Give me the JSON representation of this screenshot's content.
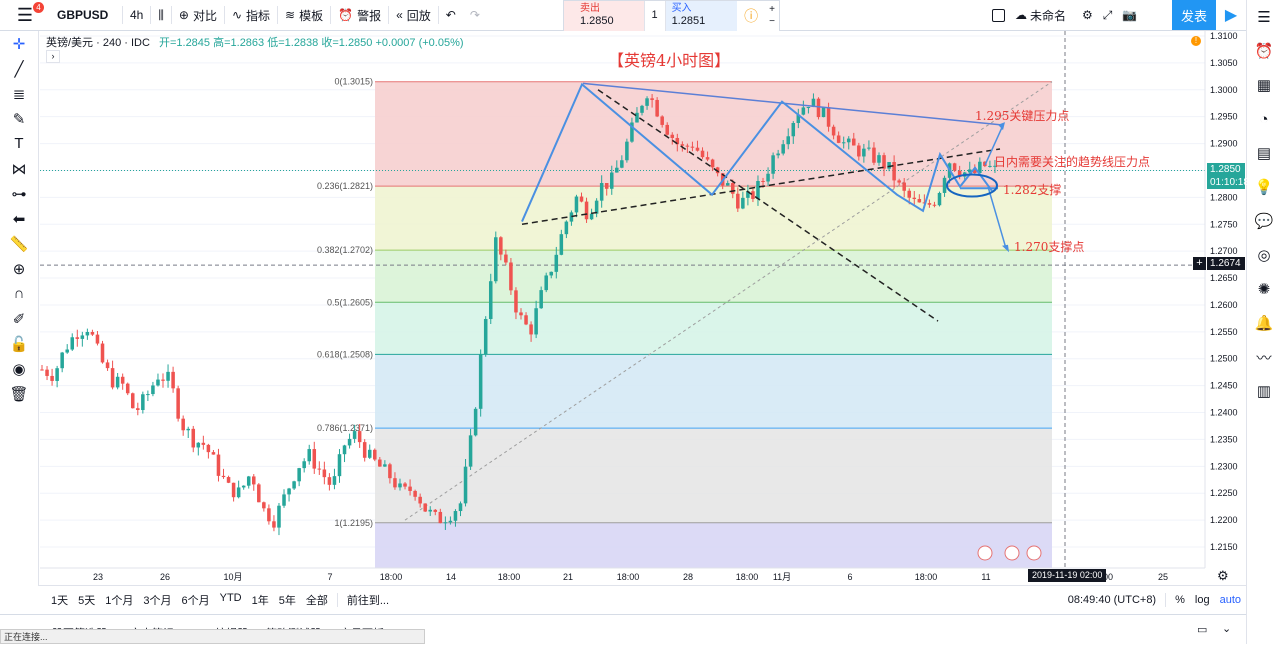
{
  "topbar": {
    "notifications": "4",
    "symbol": "GBPUSD",
    "interval": "4h",
    "compare": "对比",
    "indicators": "指标",
    "templates": "模板",
    "alert": "警报",
    "replay": "回放",
    "trade": {
      "sell_label": "卖出",
      "sell_price": "1.2850",
      "qty": "1",
      "buy_label": "买入",
      "buy_price": "1.2851"
    },
    "layout_name": "未命名",
    "publish": "发表"
  },
  "legend": {
    "name": "英镑/美元 · 240 · IDC",
    "values": "开=1.2845 高=1.2863 低=1.2838 收=1.2850 +0.0007 (+0.05%)"
  },
  "chart_title": "【英镑4小时图】",
  "annotations": {
    "a1": "1.295关键压力点",
    "a2": "日内需要关注的趋势线压力点",
    "a3": "1.282支撑",
    "a4": "1.270支撑点"
  },
  "fib_levels": [
    {
      "label": "0(1.3015)",
      "price": 1.3015
    },
    {
      "label": "0.236(1.2821)",
      "price": 1.2821
    },
    {
      "label": "0.382(1.2702)",
      "price": 1.2702
    },
    {
      "label": "0.5(1.2605)",
      "price": 1.2605
    },
    {
      "label": "0.618(1.2508)",
      "price": 1.2508
    },
    {
      "label": "0.786(1.2371)",
      "price": 1.2371
    },
    {
      "label": "1(1.2195)",
      "price": 1.2195
    }
  ],
  "price_axis": [
    "1.3100",
    "1.3050",
    "1.3000",
    "1.2950",
    "1.2900",
    "1.2850",
    "1.2800",
    "1.2750",
    "1.2700",
    "1.2650",
    "1.2600",
    "1.2550",
    "1.2500",
    "1.2450",
    "1.2400",
    "1.2350",
    "1.2300",
    "1.2250",
    "1.2200",
    "1.2150"
  ],
  "price_tags": {
    "last": "1.2850",
    "countdown": "01:10:18",
    "crosshair": "1.2674"
  },
  "time_axis": [
    "23",
    "26",
    "10月",
    "7",
    "18:00",
    "14",
    "18:00",
    "21",
    "18:00",
    "28",
    "18:00",
    "11月",
    "6",
    "18:00",
    "11",
    "18:00",
    "00",
    "25"
  ],
  "crosshair_time": "2019-11-19  02:00",
  "chart_data": {
    "type": "candlestick",
    "symbol": "GBPUSD",
    "timeframe": "240",
    "ylim": [
      1.2125,
      1.312
    ],
    "ohlc_last": {
      "open": 1.2845,
      "high": 1.2863,
      "low": 1.2838,
      "close": 1.285,
      "change": 0.0007,
      "change_pct": "+0.05%"
    },
    "path_close": [
      1.248,
      1.247,
      1.252,
      1.255,
      1.256,
      1.25,
      1.246,
      1.245,
      1.24,
      1.243,
      1.247,
      1.246,
      1.238,
      1.235,
      1.234,
      1.23,
      1.226,
      1.225,
      1.229,
      1.222,
      1.22,
      1.225,
      1.23,
      1.232,
      1.229,
      1.226,
      1.234,
      1.236,
      1.232,
      1.23,
      1.228,
      1.225,
      1.226,
      1.222,
      1.22,
      1.221,
      1.223,
      1.236,
      1.255,
      1.272,
      1.266,
      1.258,
      1.255,
      1.262,
      1.268,
      1.275,
      1.28,
      1.277,
      1.282,
      1.283,
      1.288,
      1.294,
      1.3,
      1.296,
      1.292,
      1.289,
      1.29,
      1.287,
      1.284,
      1.282,
      1.279,
      1.28,
      1.283,
      1.288,
      1.292,
      1.296,
      1.298,
      1.296,
      1.293,
      1.29,
      1.289,
      1.288,
      1.287,
      1.285,
      1.281,
      1.279,
      1.278,
      1.28,
      1.287,
      1.285,
      1.284,
      1.286,
      1.285
    ]
  },
  "bottombar": {
    "ranges": [
      "1天",
      "5天",
      "1个月",
      "3个月",
      "6个月",
      "YTD",
      "1年",
      "5年",
      "全部"
    ],
    "goto": "前往到...",
    "clock": "08:49:40 (UTC+8)",
    "pct": "%",
    "log": "log",
    "auto": "auto"
  },
  "tabs": [
    "股票筛选器",
    "文本笔记",
    "Pine编辑器",
    "策略测试器",
    "交易面板"
  ],
  "status": "正在连接..."
}
